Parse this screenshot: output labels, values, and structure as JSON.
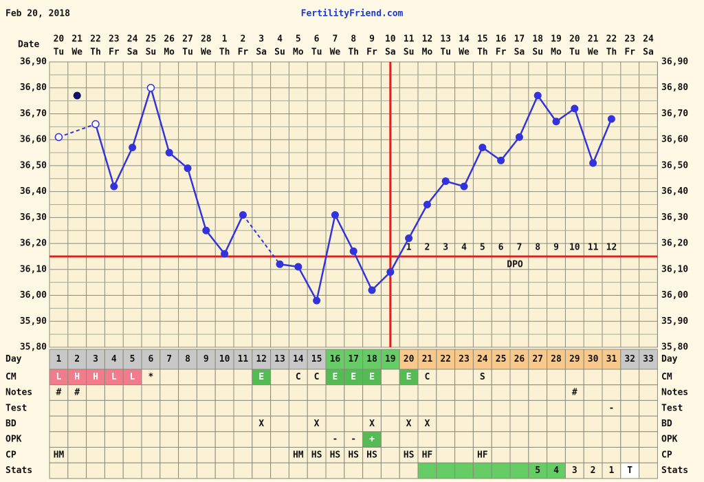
{
  "chart_data": {
    "type": "line",
    "title": "Feb 20, 2018",
    "site": "FertilityFriend.com",
    "x_label": "Date",
    "dates": [
      "20",
      "21",
      "22",
      "23",
      "24",
      "25",
      "26",
      "27",
      "28",
      "1",
      "2",
      "3",
      "4",
      "5",
      "6",
      "7",
      "8",
      "9",
      "10",
      "11",
      "12",
      "13",
      "14",
      "15",
      "16",
      "17",
      "18",
      "19",
      "20",
      "21",
      "22",
      "23",
      "24"
    ],
    "weekdays": [
      "Tu",
      "We",
      "Th",
      "Fr",
      "Sa",
      "Su",
      "Mo",
      "Tu",
      "We",
      "Th",
      "Fr",
      "Sa",
      "Su",
      "Mo",
      "Tu",
      "We",
      "Th",
      "Fr",
      "Sa",
      "Su",
      "Mo",
      "Tu",
      "We",
      "Th",
      "Fr",
      "Sa",
      "Su",
      "Mo",
      "Tu",
      "We",
      "Th",
      "Fr",
      "Sa"
    ],
    "values": [
      36.61,
      null,
      36.66,
      36.42,
      36.57,
      36.8,
      36.55,
      36.49,
      36.25,
      36.16,
      36.31,
      null,
      36.12,
      36.11,
      35.98,
      36.31,
      36.17,
      36.02,
      36.09,
      36.22,
      36.35,
      36.44,
      36.42,
      36.57,
      36.52,
      36.61,
      36.77,
      36.67,
      36.72,
      36.51,
      36.68,
      null,
      null
    ],
    "excluded_values": [
      null,
      36.77,
      null,
      null,
      null,
      null,
      null,
      null,
      null,
      null,
      null,
      null,
      null,
      null,
      null,
      null,
      null,
      null,
      null,
      null,
      null,
      null,
      null,
      null,
      null,
      null,
      null,
      null,
      null,
      null,
      null,
      null,
      null
    ],
    "hollow_points": [
      1,
      3,
      6
    ],
    "color": "#3333dd",
    "ylim": [
      35.8,
      36.9
    ],
    "yticks": [
      {
        "value": 35.8,
        "label": "35,80"
      },
      {
        "value": 35.9,
        "label": "35,90"
      },
      {
        "value": 36.0,
        "label": "36,00"
      },
      {
        "value": 36.1,
        "label": "36,10"
      },
      {
        "value": 36.2,
        "label": "36,20"
      },
      {
        "value": 36.3,
        "label": "36,30"
      },
      {
        "value": 36.4,
        "label": "36,40"
      },
      {
        "value": 36.5,
        "label": "36,50"
      },
      {
        "value": 36.6,
        "label": "36,60"
      },
      {
        "value": 36.7,
        "label": "36,70"
      },
      {
        "value": 36.8,
        "label": "36,80"
      },
      {
        "value": 36.9,
        "label": "36,90"
      }
    ],
    "grid": true,
    "coverline": 36.15,
    "ovulation_day": 19,
    "marker_line_color": "#e02020",
    "dpo_label": "DPO",
    "dpo": [
      null,
      null,
      null,
      null,
      null,
      null,
      null,
      null,
      null,
      null,
      null,
      null,
      null,
      null,
      null,
      null,
      null,
      null,
      null,
      1,
      2,
      3,
      4,
      5,
      6,
      7,
      8,
      9,
      10,
      11,
      12,
      null,
      null
    ]
  },
  "table": {
    "rows": [
      {
        "label": "Day",
        "cells": [
          1,
          2,
          3,
          4,
          5,
          6,
          7,
          8,
          9,
          10,
          11,
          12,
          13,
          14,
          15,
          16,
          17,
          18,
          19,
          20,
          21,
          22,
          23,
          24,
          25,
          26,
          27,
          28,
          29,
          30,
          31,
          32,
          33
        ],
        "colors": [
          "#c8c8c8",
          "#c8c8c8",
          "#c8c8c8",
          "#c8c8c8",
          "#c8c8c8",
          "#c8c8c8",
          "#c8c8c8",
          "#c8c8c8",
          "#c8c8c8",
          "#c8c8c8",
          "#c8c8c8",
          "#c8c8c8",
          "#c8c8c8",
          "#c8c8c8",
          "#c8c8c8",
          "#66cc66",
          "#66cc66",
          "#66cc66",
          "#66cc66",
          "#f9c98c",
          "#f9c98c",
          "#f9c98c",
          "#f9c98c",
          "#f9c98c",
          "#f9c98c",
          "#f9c98c",
          "#f9c98c",
          "#f9c98c",
          "#f9c98c",
          "#f9c98c",
          "#f9c98c",
          "#c8c8c8",
          "#c8c8c8"
        ]
      },
      {
        "label": "CM",
        "cells": [
          "L",
          "H",
          "H",
          "L",
          "L",
          "*",
          null,
          null,
          null,
          null,
          null,
          "E",
          null,
          "C",
          "C",
          "E",
          "E",
          "E",
          null,
          "E",
          "C",
          null,
          null,
          "S",
          null,
          null,
          null,
          null,
          null,
          null,
          null,
          null,
          null
        ],
        "colors": [
          "#f07c8c",
          "#f07c8c",
          "#f07c8c",
          "#f07c8c",
          "#f07c8c",
          null,
          null,
          null,
          null,
          null,
          null,
          "#55bb55",
          null,
          null,
          null,
          "#55bb55",
          "#55bb55",
          "#55bb55",
          null,
          "#55bb55",
          null,
          null,
          null,
          null,
          null,
          null,
          null,
          null,
          null,
          null,
          null,
          null,
          null
        ]
      },
      {
        "label": "Notes",
        "cells": [
          "#",
          "#",
          null,
          null,
          null,
          null,
          null,
          null,
          null,
          null,
          null,
          null,
          null,
          null,
          null,
          null,
          null,
          null,
          null,
          null,
          null,
          null,
          null,
          null,
          null,
          null,
          null,
          null,
          "#",
          null,
          null,
          null,
          null
        ]
      },
      {
        "label": "Test",
        "cells": [
          null,
          null,
          null,
          null,
          null,
          null,
          null,
          null,
          null,
          null,
          null,
          null,
          null,
          null,
          null,
          null,
          null,
          null,
          null,
          null,
          null,
          null,
          null,
          null,
          null,
          null,
          null,
          null,
          null,
          null,
          "-",
          null,
          null
        ]
      },
      {
        "label": "BD",
        "cells": [
          null,
          null,
          null,
          null,
          null,
          null,
          null,
          null,
          null,
          null,
          null,
          "X",
          null,
          null,
          "X",
          null,
          null,
          "X",
          null,
          "X",
          "X",
          null,
          null,
          null,
          null,
          null,
          null,
          null,
          null,
          null,
          null,
          null,
          null
        ]
      },
      {
        "label": "OPK",
        "cells": [
          null,
          null,
          null,
          null,
          null,
          null,
          null,
          null,
          null,
          null,
          null,
          null,
          null,
          null,
          null,
          "-",
          "-",
          "+",
          null,
          null,
          null,
          null,
          null,
          null,
          null,
          null,
          null,
          null,
          null,
          null,
          null,
          null,
          null
        ],
        "colors": [
          null,
          null,
          null,
          null,
          null,
          null,
          null,
          null,
          null,
          null,
          null,
          null,
          null,
          null,
          null,
          null,
          null,
          "#55bb55",
          null,
          null,
          null,
          null,
          null,
          null,
          null,
          null,
          null,
          null,
          null,
          null,
          null,
          null,
          null
        ]
      },
      {
        "label": "CP",
        "cells": [
          "HM",
          null,
          null,
          null,
          null,
          null,
          null,
          null,
          null,
          null,
          null,
          null,
          null,
          "HM",
          "HS",
          "HS",
          "HS",
          "HS",
          null,
          "HS",
          "HF",
          null,
          null,
          "HF",
          null,
          null,
          null,
          null,
          null,
          null,
          null,
          null,
          null
        ]
      },
      {
        "label": "Stats",
        "cells": [
          null,
          null,
          null,
          null,
          null,
          null,
          null,
          null,
          null,
          null,
          null,
          null,
          null,
          null,
          null,
          null,
          null,
          null,
          null,
          null,
          null,
          null,
          null,
          null,
          null,
          null,
          "5",
          "4",
          "3",
          "2",
          "1",
          "T",
          null
        ],
        "colors": [
          null,
          null,
          null,
          null,
          null,
          null,
          null,
          null,
          null,
          null,
          null,
          null,
          null,
          null,
          null,
          null,
          null,
          null,
          null,
          null,
          "#66cc66",
          "#66cc66",
          "#66cc66",
          "#66cc66",
          "#66cc66",
          "#66cc66",
          "#66cc66",
          "#66cc66",
          null,
          null,
          null,
          "#ffffff",
          null
        ]
      }
    ]
  }
}
